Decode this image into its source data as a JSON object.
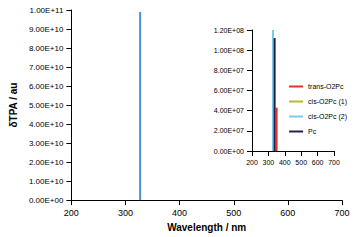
{
  "chart_data": [
    {
      "type": "bar",
      "x_label": "Wavelength / nm",
      "y_label": "δTPA / au",
      "xlim": [
        200,
        700
      ],
      "xticks": [
        200,
        300,
        400,
        500,
        600,
        700
      ],
      "ylim": [
        0,
        100000000000
      ],
      "yticks": [
        {
          "value": 0,
          "label": "0.00E+00"
        },
        {
          "value": 10000000000,
          "label": "1.00E+10"
        },
        {
          "value": 20000000000,
          "label": "2.00E+10"
        },
        {
          "value": 30000000000,
          "label": "3.00E+10"
        },
        {
          "value": 40000000000,
          "label": "4.00E+10"
        },
        {
          "value": 50000000000,
          "label": "5.00E+10"
        },
        {
          "value": 60000000000,
          "label": "6.00E+10"
        },
        {
          "value": 70000000000,
          "label": "7.00E+10"
        },
        {
          "value": 80000000000,
          "label": "8.00E+10"
        },
        {
          "value": 90000000000,
          "label": "9.00E+10"
        },
        {
          "value": 100000000000,
          "label": "1.00E+11"
        }
      ],
      "grid": false,
      "series": [
        {
          "color": "#4a90d9",
          "x": [
            327
          ],
          "values": [
            99000000000
          ]
        }
      ]
    },
    {
      "type": "bar",
      "xlim": [
        200,
        700
      ],
      "xticks": [
        200,
        300,
        400,
        500,
        600,
        700
      ],
      "ylim": [
        0,
        120000000
      ],
      "yticks": [
        {
          "value": 0,
          "label": "0.00E+00"
        },
        {
          "value": 20000000,
          "label": "2.00E+07"
        },
        {
          "value": 40000000,
          "label": "4.00E+07"
        },
        {
          "value": 60000000,
          "label": "6.00E+07"
        },
        {
          "value": 80000000,
          "label": "8.00E+07"
        },
        {
          "value": 100000000,
          "label": "1.00E+08"
        },
        {
          "value": 120000000,
          "label": "1.20E+08"
        }
      ],
      "grid": false,
      "legend": "right",
      "series": [
        {
          "name": "trans-O2Pc",
          "color": "#e03030",
          "x": [
            350
          ],
          "values": [
            43000000
          ]
        },
        {
          "name": "cis-O2Pc (1)",
          "color": "#b5b835",
          "x": [
            328
          ],
          "values": [
            null
          ]
        },
        {
          "name": "cis-O2Pc (2)",
          "color": "#7ec8f0",
          "x": [
            328
          ],
          "values": [
            120000000
          ]
        },
        {
          "name": "Pc",
          "color": "#222244",
          "x": [
            338
          ],
          "values": [
            112000000
          ]
        }
      ]
    }
  ]
}
